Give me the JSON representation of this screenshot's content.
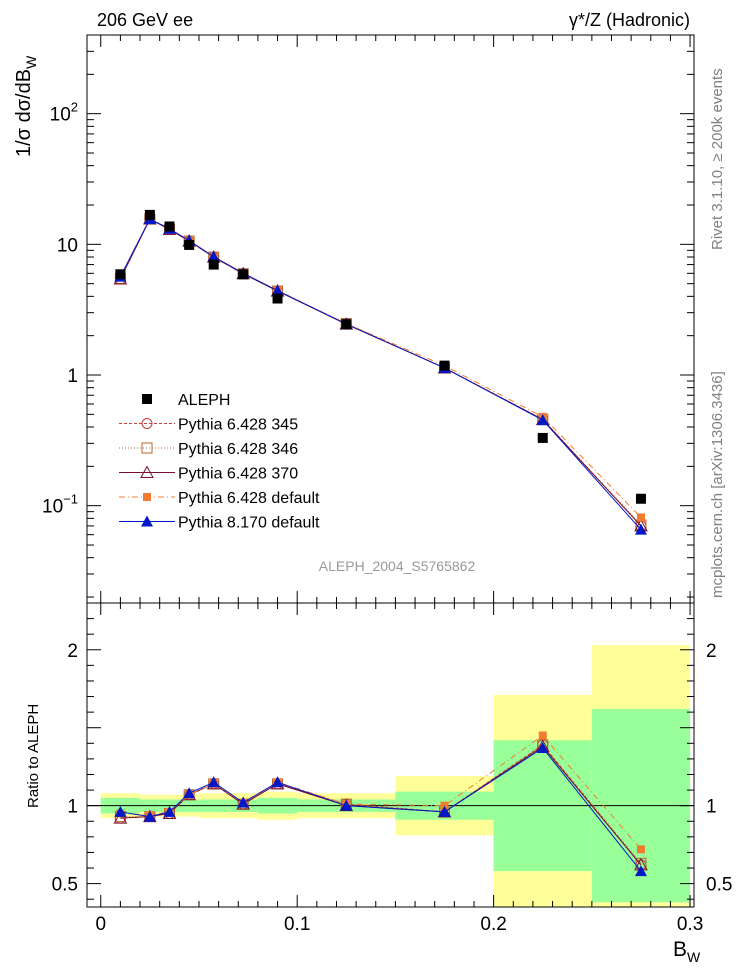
{
  "chart_data": {
    "type": "line",
    "title_left": "206 GeV ee",
    "title_right": "γ*/Z (Hadronic)",
    "ylabel_main": "1/σ dσ/dB",
    "ylabel_main_sub": "W",
    "ylabel_ratio": "Ratio to ALEPH",
    "xlabel": "B",
    "xlabel_sub": "W",
    "side_label_top": "Rivet 3.1.10, ≥ 200k events",
    "side_label_bottom": "mcplots.cern.ch [arXiv:1306.3436]",
    "analysis_label": "ALEPH_2004_S5765862",
    "log_y_main": true,
    "ylim_main": [
      0.018,
      400
    ],
    "ylim_ratio": [
      0.35,
      2.3
    ],
    "xlim": [
      -0.007,
      0.302
    ],
    "x_ticks": [
      {
        "v": 0,
        "label": "0"
      },
      {
        "v": 0.1,
        "label": "0.1"
      },
      {
        "v": 0.2,
        "label": "0.2"
      },
      {
        "v": 0.3,
        "label": "0.3"
      }
    ],
    "y_ticks_main": [
      {
        "v": 0.1,
        "base": "10",
        "exp": "−1"
      },
      {
        "v": 1,
        "base": "1",
        "exp": ""
      },
      {
        "v": 10,
        "base": "10",
        "exp": ""
      },
      {
        "v": 100,
        "base": "10",
        "exp": "2"
      }
    ],
    "y_ticks_ratio": [
      {
        "v": 0.5,
        "label": "0.5"
      },
      {
        "v": 1,
        "label": "1"
      },
      {
        "v": 2,
        "label": "2"
      }
    ],
    "bin_edges": [
      0,
      0.02,
      0.03,
      0.04,
      0.05,
      0.065,
      0.08,
      0.1,
      0.15,
      0.2,
      0.25,
      0.3
    ],
    "x": [
      0.01,
      0.025,
      0.035,
      0.045,
      0.0575,
      0.0725,
      0.09,
      0.125,
      0.175,
      0.225,
      0.275
    ],
    "data": {
      "name": "ALEPH",
      "values": [
        5.9,
        16.8,
        13.7,
        9.9,
        7.0,
        5.9,
        3.85,
        2.45,
        1.18,
        0.33,
        0.113
      ]
    },
    "band_stat": [
      0.05,
      0.04,
      0.04,
      0.04,
      0.04,
      0.04,
      0.05,
      0.04,
      0.09,
      0.42,
      0.62
    ],
    "band_total": [
      0.08,
      0.07,
      0.07,
      0.07,
      0.08,
      0.08,
      0.09,
      0.08,
      0.19,
      0.71,
      1.03
    ],
    "series": [
      {
        "name": "Pythia 6.428 345",
        "color": "#c83c3c",
        "marker": "open-circle",
        "dash": "3,2",
        "ratio": [
          0.92,
          0.93,
          0.95,
          1.07,
          1.14,
          1.01,
          1.14,
          1.01,
          0.96,
          1.39,
          0.62
        ]
      },
      {
        "name": "Pythia 6.428 346",
        "color": "#b8642c",
        "marker": "open-square",
        "dash": "1,2",
        "ratio": [
          0.93,
          0.93,
          0.95,
          1.07,
          1.14,
          1.01,
          1.14,
          1.01,
          0.96,
          1.39,
          0.63
        ]
      },
      {
        "name": "Pythia 6.428 370",
        "color": "#7a1030",
        "marker": "open-triangle",
        "dash": "",
        "ratio": [
          0.92,
          0.93,
          0.95,
          1.07,
          1.14,
          1.01,
          1.14,
          1.0,
          0.96,
          1.38,
          0.62
        ]
      },
      {
        "name": "Pythia 6.428 default",
        "color": "#f07c30",
        "marker": "filled-square",
        "dash": "6,3,1,3",
        "ratio": [
          0.95,
          0.94,
          0.96,
          1.07,
          1.14,
          1.02,
          1.15,
          1.01,
          1.0,
          1.45,
          0.72
        ]
      },
      {
        "name": "Pythia 8.170 default",
        "color": "#0018c8",
        "marker": "filled-triangle",
        "dash": "",
        "ratio": [
          0.96,
          0.93,
          0.96,
          1.08,
          1.15,
          1.02,
          1.15,
          1.0,
          0.96,
          1.37,
          0.58
        ]
      }
    ]
  }
}
